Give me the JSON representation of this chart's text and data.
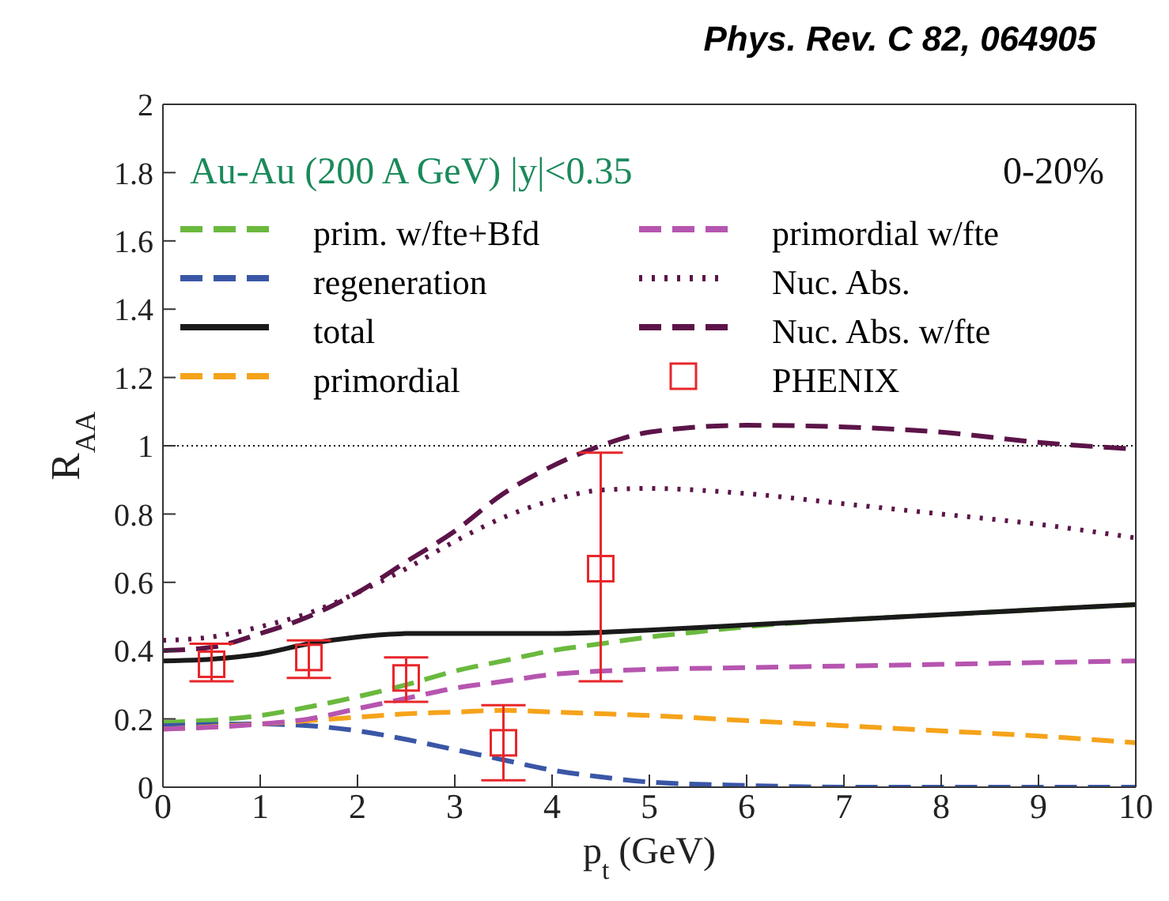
{
  "chart_data": {
    "type": "line",
    "title": "Phys. Rev. C 82, 064905",
    "xlabel": "p$_{t}$ (GeV)",
    "ylabel": "R$_{AA}$",
    "annotations": [
      "Au-Au (200 A GeV) |y|<0.35",
      "0-20%"
    ],
    "xlim": [
      0,
      10
    ],
    "xticks": [
      0,
      1,
      2,
      3,
      4,
      5,
      6,
      7,
      8,
      9,
      10
    ],
    "ylim": [
      0,
      2
    ],
    "yticks": [
      0,
      0.2,
      0.4,
      0.6,
      0.8,
      1,
      1.2,
      1.4,
      1.6,
      1.8,
      2
    ],
    "legend": "top",
    "grid": false,
    "ref_lines": [
      {
        "axis": "y",
        "value": 1,
        "color": "#000000",
        "line_style": "dotted"
      }
    ],
    "series": [
      {
        "name": "prim. w/fte+Bfd",
        "color": "#6ab93e",
        "line_style": "dashed",
        "x": [
          0,
          1,
          1.5,
          2,
          2.5,
          3,
          3.5,
          4,
          4.5,
          5,
          5.5,
          6,
          7,
          8,
          9,
          10
        ],
        "values": [
          0.19,
          0.21,
          0.235,
          0.265,
          0.3,
          0.34,
          0.37,
          0.4,
          0.42,
          0.44,
          0.455,
          0.47,
          0.49,
          0.505,
          0.52,
          0.535
        ]
      },
      {
        "name": "regeneration",
        "color": "#3a56a6",
        "line_style": "dashed",
        "x": [
          0,
          1,
          1.5,
          2,
          2.5,
          3,
          3.5,
          4,
          4.5,
          5,
          6,
          7,
          10
        ],
        "values": [
          0.18,
          0.185,
          0.18,
          0.165,
          0.14,
          0.11,
          0.08,
          0.05,
          0.03,
          0.015,
          0.005,
          0,
          0
        ]
      },
      {
        "name": "total",
        "color": "#1a1a1a",
        "line_style": "solid",
        "x": [
          0,
          0.5,
          1,
          1.5,
          2,
          2.5,
          3,
          4,
          5,
          6,
          7,
          8,
          9,
          10
        ],
        "values": [
          0.37,
          0.375,
          0.39,
          0.42,
          0.44,
          0.45,
          0.45,
          0.45,
          0.46,
          0.475,
          0.49,
          0.505,
          0.52,
          0.535
        ]
      },
      {
        "name": "primordial",
        "color": "#f5a31a",
        "line_style": "dashed",
        "x": [
          0,
          1,
          2,
          2.5,
          3,
          3.5,
          4,
          5,
          6,
          7,
          8,
          9,
          10
        ],
        "values": [
          0.17,
          0.185,
          0.205,
          0.215,
          0.22,
          0.225,
          0.22,
          0.21,
          0.195,
          0.18,
          0.165,
          0.15,
          0.13
        ]
      },
      {
        "name": "primordial w/fte",
        "color": "#b655b0",
        "line_style": "dashed",
        "x": [
          0,
          1,
          1.5,
          2,
          2.5,
          3,
          3.5,
          4,
          4.5,
          5,
          6,
          7,
          8,
          9,
          10
        ],
        "values": [
          0.17,
          0.185,
          0.2,
          0.23,
          0.26,
          0.29,
          0.31,
          0.33,
          0.34,
          0.345,
          0.35,
          0.355,
          0.36,
          0.365,
          0.37
        ]
      },
      {
        "name": "Nuc. Abs.",
        "color": "#5c1448",
        "line_style": "dotted",
        "x": [
          0,
          0.5,
          1,
          1.5,
          2,
          2.5,
          3,
          3.5,
          4,
          4.5,
          5,
          6,
          7,
          8,
          9,
          10
        ],
        "values": [
          0.43,
          0.44,
          0.47,
          0.51,
          0.57,
          0.64,
          0.72,
          0.79,
          0.84,
          0.87,
          0.875,
          0.86,
          0.83,
          0.8,
          0.77,
          0.73
        ]
      },
      {
        "name": "Nuc. Abs. w/fte",
        "color": "#5c1448",
        "line_style": "dashed",
        "x": [
          0,
          0.5,
          1,
          1.5,
          2,
          2.5,
          3,
          3.5,
          4,
          4.5,
          5,
          6,
          7,
          8,
          9,
          10
        ],
        "values": [
          0.4,
          0.41,
          0.45,
          0.5,
          0.57,
          0.66,
          0.75,
          0.86,
          0.94,
          1.0,
          1.04,
          1.06,
          1.055,
          1.04,
          1.01,
          0.99
        ]
      },
      {
        "name": "PHENIX",
        "type": "scatter",
        "marker": "square",
        "color": "#e8262a",
        "x": [
          0.5,
          1.5,
          2.5,
          3.5,
          4.5
        ],
        "values": [
          0.36,
          0.38,
          0.32,
          0.13,
          0.64
        ],
        "errors": [
          [
            0.31,
            0.42
          ],
          [
            0.32,
            0.43
          ],
          [
            0.25,
            0.38
          ],
          [
            0.02,
            0.24
          ],
          [
            0.31,
            0.98
          ]
        ]
      }
    ]
  }
}
